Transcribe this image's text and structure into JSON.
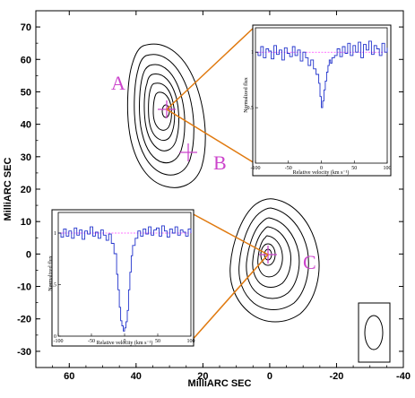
{
  "chart_data": {
    "type": "contour",
    "xlabel": "MilliARC SEC",
    "ylabel": "MilliARC SEC",
    "xlim": [
      70,
      -40
    ],
    "ylim": [
      -35,
      75
    ],
    "xticks": [
      "60",
      "40",
      "20",
      "0",
      "-20",
      "-40"
    ],
    "yticks": [
      "70",
      "60",
      "50",
      "40",
      "30",
      "20",
      "10",
      "0",
      "-10",
      "-20",
      "-30"
    ],
    "components": [
      {
        "label": "A",
        "x": 30,
        "y": 47
      },
      {
        "label": "B",
        "x": 25,
        "y": 33
      },
      {
        "label": "C",
        "x": 0,
        "y": 0
      }
    ],
    "contour_colors": {
      "line": "#000000",
      "marker": "#cc44cc",
      "label": "#cc44cc",
      "connector": "#e07a10",
      "spectrum": "#2233cc",
      "baseline": "#ff44ff"
    },
    "insets": [
      {
        "position": "top-right",
        "xlabel": "Relative velocity (km s⁻¹)",
        "ylabel": "Normalized flux",
        "xlim": [
          -100,
          100
        ],
        "xticks": [
          "-100",
          "-50",
          "0",
          "50",
          "100"
        ],
        "yticks": [
          "1",
          "0.5"
        ],
        "spectrum_x": [
          -100,
          -96,
          -92,
          -88,
          -84,
          -80,
          -76,
          -72,
          -68,
          -64,
          -60,
          -56,
          -52,
          -48,
          -44,
          -40,
          -36,
          -32,
          -28,
          -24,
          -20,
          -16,
          -12,
          -8,
          -4,
          -2,
          0,
          2,
          4,
          6,
          8,
          10,
          12,
          14,
          16,
          20,
          24,
          28,
          32,
          36,
          40,
          44,
          48,
          52,
          56,
          60,
          64,
          68,
          72,
          76,
          80,
          84,
          88,
          92,
          96,
          100
        ],
        "spectrum_y": [
          1.0,
          0.97,
          1.05,
          0.95,
          1.03,
          1.01,
          0.94,
          1.06,
          0.98,
          1.02,
          0.93,
          1.04,
          0.99,
          0.96,
          1.05,
          0.97,
          1.02,
          0.92,
          1.0,
          0.95,
          0.88,
          0.93,
          0.85,
          0.8,
          0.72,
          0.6,
          0.5,
          0.56,
          0.66,
          0.74,
          0.82,
          0.88,
          0.93,
          0.9,
          0.95,
          0.97,
          1.03,
          0.96,
          1.05,
          0.99,
          1.08,
          0.97,
          1.06,
          1.0,
          1.09,
          0.95,
          1.07,
          1.02,
          1.1,
          0.98,
          1.06,
          1.03,
          0.97,
          1.08,
          1.0,
          1.04
        ]
      },
      {
        "position": "middle-left",
        "xlabel": "Relative velocity (km s⁻¹)",
        "ylabel": "Normalized flux",
        "xlim": [
          -100,
          100
        ],
        "xticks": [
          "-100",
          "-50",
          "0",
          "50",
          "100"
        ],
        "yticks": [
          "1",
          "0.5",
          "0"
        ],
        "spectrum_x": [
          -100,
          -96,
          -92,
          -88,
          -84,
          -80,
          -76,
          -72,
          -68,
          -64,
          -60,
          -56,
          -52,
          -48,
          -44,
          -40,
          -36,
          -32,
          -28,
          -24,
          -20,
          -16,
          -12,
          -10,
          -8,
          -6,
          -4,
          -2,
          0,
          2,
          4,
          6,
          8,
          10,
          12,
          16,
          20,
          24,
          28,
          32,
          36,
          40,
          44,
          48,
          52,
          56,
          60,
          64,
          68,
          72,
          76,
          80,
          84,
          88,
          92,
          96,
          100
        ],
        "spectrum_y": [
          1.0,
          0.96,
          1.04,
          0.97,
          1.02,
          0.95,
          1.05,
          0.98,
          1.03,
          0.94,
          1.02,
          0.99,
          1.06,
          0.97,
          1.01,
          0.95,
          1.03,
          0.98,
          0.93,
          0.99,
          0.9,
          0.8,
          0.6,
          0.45,
          0.28,
          0.15,
          0.1,
          0.05,
          0.08,
          0.14,
          0.25,
          0.45,
          0.62,
          0.78,
          0.88,
          0.95,
          1.02,
          0.97,
          1.04,
          0.99,
          1.06,
          0.98,
          1.03,
          1.05,
          0.97,
          1.07,
          1.02,
          0.96,
          1.04,
          1.0,
          1.06,
          0.98,
          1.03,
          1.01,
          0.97,
          1.04,
          1.0
        ]
      }
    ]
  },
  "labels": {
    "A": "A",
    "B": "B",
    "C": "C"
  }
}
